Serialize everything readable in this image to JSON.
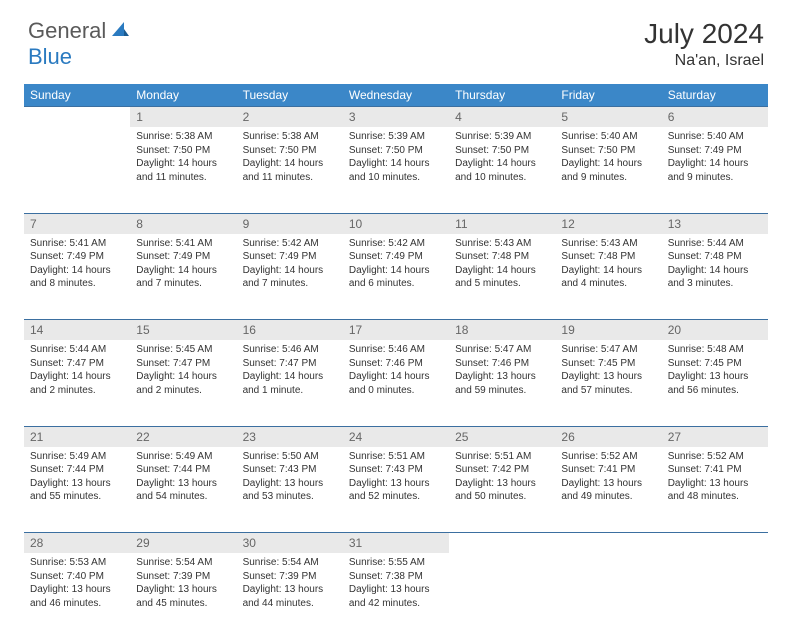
{
  "logo": {
    "general": "General",
    "blue": "Blue"
  },
  "title": "July 2024",
  "location": "Na'an, Israel",
  "header_bg": "#3b87c8",
  "days": [
    "Sunday",
    "Monday",
    "Tuesday",
    "Wednesday",
    "Thursday",
    "Friday",
    "Saturday"
  ],
  "weeks": [
    {
      "nums": [
        "",
        "1",
        "2",
        "3",
        "4",
        "5",
        "6"
      ],
      "cells": [
        {
          "empty": true
        },
        {
          "sunrise": "Sunrise: 5:38 AM",
          "sunset": "Sunset: 7:50 PM",
          "day1": "Daylight: 14 hours",
          "day2": "and 11 minutes."
        },
        {
          "sunrise": "Sunrise: 5:38 AM",
          "sunset": "Sunset: 7:50 PM",
          "day1": "Daylight: 14 hours",
          "day2": "and 11 minutes."
        },
        {
          "sunrise": "Sunrise: 5:39 AM",
          "sunset": "Sunset: 7:50 PM",
          "day1": "Daylight: 14 hours",
          "day2": "and 10 minutes."
        },
        {
          "sunrise": "Sunrise: 5:39 AM",
          "sunset": "Sunset: 7:50 PM",
          "day1": "Daylight: 14 hours",
          "day2": "and 10 minutes."
        },
        {
          "sunrise": "Sunrise: 5:40 AM",
          "sunset": "Sunset: 7:50 PM",
          "day1": "Daylight: 14 hours",
          "day2": "and 9 minutes."
        },
        {
          "sunrise": "Sunrise: 5:40 AM",
          "sunset": "Sunset: 7:49 PM",
          "day1": "Daylight: 14 hours",
          "day2": "and 9 minutes."
        }
      ]
    },
    {
      "nums": [
        "7",
        "8",
        "9",
        "10",
        "11",
        "12",
        "13"
      ],
      "cells": [
        {
          "sunrise": "Sunrise: 5:41 AM",
          "sunset": "Sunset: 7:49 PM",
          "day1": "Daylight: 14 hours",
          "day2": "and 8 minutes."
        },
        {
          "sunrise": "Sunrise: 5:41 AM",
          "sunset": "Sunset: 7:49 PM",
          "day1": "Daylight: 14 hours",
          "day2": "and 7 minutes."
        },
        {
          "sunrise": "Sunrise: 5:42 AM",
          "sunset": "Sunset: 7:49 PM",
          "day1": "Daylight: 14 hours",
          "day2": "and 7 minutes."
        },
        {
          "sunrise": "Sunrise: 5:42 AM",
          "sunset": "Sunset: 7:49 PM",
          "day1": "Daylight: 14 hours",
          "day2": "and 6 minutes."
        },
        {
          "sunrise": "Sunrise: 5:43 AM",
          "sunset": "Sunset: 7:48 PM",
          "day1": "Daylight: 14 hours",
          "day2": "and 5 minutes."
        },
        {
          "sunrise": "Sunrise: 5:43 AM",
          "sunset": "Sunset: 7:48 PM",
          "day1": "Daylight: 14 hours",
          "day2": "and 4 minutes."
        },
        {
          "sunrise": "Sunrise: 5:44 AM",
          "sunset": "Sunset: 7:48 PM",
          "day1": "Daylight: 14 hours",
          "day2": "and 3 minutes."
        }
      ]
    },
    {
      "nums": [
        "14",
        "15",
        "16",
        "17",
        "18",
        "19",
        "20"
      ],
      "cells": [
        {
          "sunrise": "Sunrise: 5:44 AM",
          "sunset": "Sunset: 7:47 PM",
          "day1": "Daylight: 14 hours",
          "day2": "and 2 minutes."
        },
        {
          "sunrise": "Sunrise: 5:45 AM",
          "sunset": "Sunset: 7:47 PM",
          "day1": "Daylight: 14 hours",
          "day2": "and 2 minutes."
        },
        {
          "sunrise": "Sunrise: 5:46 AM",
          "sunset": "Sunset: 7:47 PM",
          "day1": "Daylight: 14 hours",
          "day2": "and 1 minute."
        },
        {
          "sunrise": "Sunrise: 5:46 AM",
          "sunset": "Sunset: 7:46 PM",
          "day1": "Daylight: 14 hours",
          "day2": "and 0 minutes."
        },
        {
          "sunrise": "Sunrise: 5:47 AM",
          "sunset": "Sunset: 7:46 PM",
          "day1": "Daylight: 13 hours",
          "day2": "and 59 minutes."
        },
        {
          "sunrise": "Sunrise: 5:47 AM",
          "sunset": "Sunset: 7:45 PM",
          "day1": "Daylight: 13 hours",
          "day2": "and 57 minutes."
        },
        {
          "sunrise": "Sunrise: 5:48 AM",
          "sunset": "Sunset: 7:45 PM",
          "day1": "Daylight: 13 hours",
          "day2": "and 56 minutes."
        }
      ]
    },
    {
      "nums": [
        "21",
        "22",
        "23",
        "24",
        "25",
        "26",
        "27"
      ],
      "cells": [
        {
          "sunrise": "Sunrise: 5:49 AM",
          "sunset": "Sunset: 7:44 PM",
          "day1": "Daylight: 13 hours",
          "day2": "and 55 minutes."
        },
        {
          "sunrise": "Sunrise: 5:49 AM",
          "sunset": "Sunset: 7:44 PM",
          "day1": "Daylight: 13 hours",
          "day2": "and 54 minutes."
        },
        {
          "sunrise": "Sunrise: 5:50 AM",
          "sunset": "Sunset: 7:43 PM",
          "day1": "Daylight: 13 hours",
          "day2": "and 53 minutes."
        },
        {
          "sunrise": "Sunrise: 5:51 AM",
          "sunset": "Sunset: 7:43 PM",
          "day1": "Daylight: 13 hours",
          "day2": "and 52 minutes."
        },
        {
          "sunrise": "Sunrise: 5:51 AM",
          "sunset": "Sunset: 7:42 PM",
          "day1": "Daylight: 13 hours",
          "day2": "and 50 minutes."
        },
        {
          "sunrise": "Sunrise: 5:52 AM",
          "sunset": "Sunset: 7:41 PM",
          "day1": "Daylight: 13 hours",
          "day2": "and 49 minutes."
        },
        {
          "sunrise": "Sunrise: 5:52 AM",
          "sunset": "Sunset: 7:41 PM",
          "day1": "Daylight: 13 hours",
          "day2": "and 48 minutes."
        }
      ]
    },
    {
      "nums": [
        "28",
        "29",
        "30",
        "31",
        "",
        "",
        ""
      ],
      "cells": [
        {
          "sunrise": "Sunrise: 5:53 AM",
          "sunset": "Sunset: 7:40 PM",
          "day1": "Daylight: 13 hours",
          "day2": "and 46 minutes."
        },
        {
          "sunrise": "Sunrise: 5:54 AM",
          "sunset": "Sunset: 7:39 PM",
          "day1": "Daylight: 13 hours",
          "day2": "and 45 minutes."
        },
        {
          "sunrise": "Sunrise: 5:54 AM",
          "sunset": "Sunset: 7:39 PM",
          "day1": "Daylight: 13 hours",
          "day2": "and 44 minutes."
        },
        {
          "sunrise": "Sunrise: 5:55 AM",
          "sunset": "Sunset: 7:38 PM",
          "day1": "Daylight: 13 hours",
          "day2": "and 42 minutes."
        },
        {
          "empty": true
        },
        {
          "empty": true
        },
        {
          "empty": true
        }
      ]
    }
  ]
}
